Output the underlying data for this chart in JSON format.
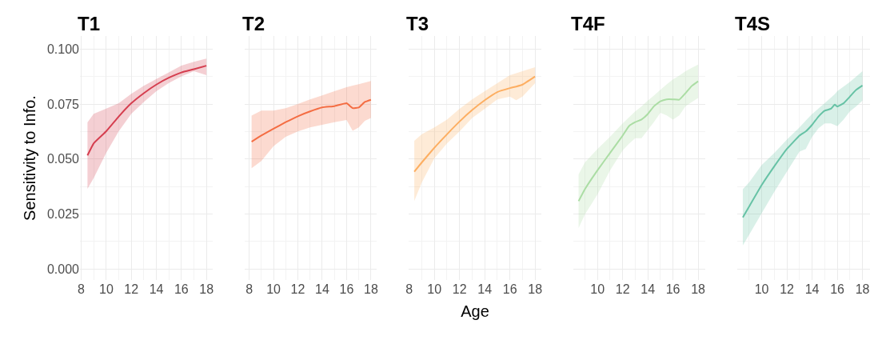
{
  "chart_data": [
    {
      "type": "line",
      "title": "T1",
      "ylabel": "Sensitivity to Info.",
      "xlim": [
        7.9,
        18.5
      ],
      "xticks": [
        8,
        10,
        12,
        14,
        16,
        18
      ],
      "ylim": [
        -0.005,
        0.106
      ],
      "yticks": [
        {
          "value": 0,
          "label": "0.000"
        },
        {
          "value": 0.025,
          "label": "0.025"
        },
        {
          "value": 0.05,
          "label": "0.050"
        },
        {
          "value": 0.075,
          "label": "0.075"
        },
        {
          "value": 0.1,
          "label": "0.100"
        }
      ],
      "grid": true,
      "series": [
        {
          "color": "#d53e4f",
          "x": [
            8.5,
            9,
            10,
            11,
            12,
            13,
            14,
            15,
            16,
            17,
            18
          ],
          "values": [
            0.0517,
            0.0572,
            0.0627,
            0.0694,
            0.0754,
            0.08,
            0.0839,
            0.087,
            0.0894,
            0.0909,
            0.0925
          ],
          "lower": [
            0.0365,
            0.0414,
            0.0529,
            0.0627,
            0.0706,
            0.076,
            0.0809,
            0.0846,
            0.0876,
            0.09,
            0.0882
          ],
          "upper": [
            0.0667,
            0.0706,
            0.073,
            0.0754,
            0.0797,
            0.0833,
            0.0864,
            0.0894,
            0.0925,
            0.0943,
            0.0957
          ]
        }
      ]
    },
    {
      "type": "line",
      "title": "T2",
      "xlim": [
        7.6,
        18.5
      ],
      "xticks": [
        8,
        10,
        12,
        14,
        16,
        18
      ],
      "ylim": [
        -0.005,
        0.106
      ],
      "yticks": [
        {
          "value": 0,
          "label": null
        },
        {
          "value": 0.025,
          "label": null
        },
        {
          "value": 0.05,
          "label": null
        },
        {
          "value": 0.075,
          "label": null
        },
        {
          "value": 0.1,
          "label": null
        }
      ],
      "tick_labels": "x",
      "grid": true,
      "series": [
        {
          "color": "#f46d43",
          "x": [
            8.2,
            9,
            10,
            11,
            12,
            13,
            14,
            15,
            16,
            16.5,
            17,
            17.5,
            18
          ],
          "values": [
            0.0579,
            0.0607,
            0.0638,
            0.0668,
            0.0695,
            0.0717,
            0.0735,
            0.0741,
            0.0754,
            0.0732,
            0.0735,
            0.076,
            0.077
          ],
          "lower": [
            0.0459,
            0.0491,
            0.0559,
            0.0601,
            0.0626,
            0.0644,
            0.0656,
            0.0668,
            0.0678,
            0.0629,
            0.0644,
            0.0674,
            0.0687
          ],
          "upper": [
            0.0698,
            0.0721,
            0.0721,
            0.0732,
            0.0751,
            0.0772,
            0.079,
            0.0809,
            0.0827,
            0.0834,
            0.0841,
            0.0848,
            0.0855
          ]
        }
      ]
    },
    {
      "type": "line",
      "title": "T3",
      "xlabel": "Age",
      "xlim": [
        7.95,
        18.5
      ],
      "xticks": [
        8,
        10,
        12,
        14,
        16,
        18
      ],
      "ylim": [
        -0.005,
        0.106
      ],
      "yticks": [
        {
          "value": 0,
          "label": null
        },
        {
          "value": 0.025,
          "label": null
        },
        {
          "value": 0.05,
          "label": null
        },
        {
          "value": 0.075,
          "label": null
        },
        {
          "value": 0.1,
          "label": null
        }
      ],
      "tick_labels": "x",
      "grid": true,
      "series": [
        {
          "color": "#fdae61",
          "x": [
            8.4,
            9,
            10,
            11,
            12,
            13,
            14,
            15,
            16,
            16.5,
            17,
            18
          ],
          "values": [
            0.0443,
            0.0485,
            0.0552,
            0.0613,
            0.0671,
            0.0723,
            0.0768,
            0.0805,
            0.0823,
            0.083,
            0.0839,
            0.0876
          ],
          "lower": [
            0.0309,
            0.0394,
            0.0504,
            0.0571,
            0.0626,
            0.0687,
            0.0729,
            0.0772,
            0.0784,
            0.0768,
            0.0784,
            0.0845
          ],
          "upper": [
            0.0583,
            0.0613,
            0.0644,
            0.068,
            0.0729,
            0.0772,
            0.0809,
            0.0845,
            0.0882,
            0.0891,
            0.09,
            0.0918
          ]
        }
      ]
    },
    {
      "type": "line",
      "title": "T4F",
      "xlim": [
        8.05,
        18.6
      ],
      "xticks": [
        10,
        12,
        14,
        16,
        18
      ],
      "ylim": [
        -0.005,
        0.106
      ],
      "yticks": [
        {
          "value": 0,
          "label": null
        },
        {
          "value": 0.025,
          "label": null
        },
        {
          "value": 0.05,
          "label": null
        },
        {
          "value": 0.075,
          "label": null
        },
        {
          "value": 0.1,
          "label": null
        }
      ],
      "tick_labels": "x",
      "grid": true,
      "series": [
        {
          "color": "#abdda4",
          "x": [
            8.5,
            9,
            10,
            11,
            12,
            12.5,
            13,
            13.5,
            14,
            14.5,
            15,
            15.5,
            16,
            16.5,
            17,
            17.5,
            18
          ],
          "values": [
            0.0309,
            0.0363,
            0.0449,
            0.0528,
            0.0607,
            0.065,
            0.0668,
            0.068,
            0.0705,
            0.0741,
            0.0763,
            0.0772,
            0.0772,
            0.077,
            0.08,
            0.0833,
            0.0854
          ],
          "lower": [
            0.0187,
            0.0248,
            0.0339,
            0.0449,
            0.054,
            0.057,
            0.0595,
            0.0595,
            0.0632,
            0.067,
            0.0711,
            0.0699,
            0.068,
            0.0699,
            0.0741,
            0.076,
            0.0778
          ],
          "upper": [
            0.043,
            0.0485,
            0.0546,
            0.0601,
            0.0662,
            0.069,
            0.0717,
            0.074,
            0.0766,
            0.079,
            0.0815,
            0.084,
            0.0863,
            0.088,
            0.09,
            0.0915,
            0.093
          ]
        }
      ]
    },
    {
      "type": "line",
      "title": "T4S",
      "xlim": [
        8.06,
        18.6
      ],
      "xticks": [
        10,
        12,
        14,
        16,
        18
      ],
      "ylim": [
        -0.005,
        0.106
      ],
      "yticks": [
        {
          "value": 0,
          "label": null
        },
        {
          "value": 0.025,
          "label": null
        },
        {
          "value": 0.05,
          "label": null
        },
        {
          "value": 0.075,
          "label": null
        },
        {
          "value": 0.1,
          "label": null
        }
      ],
      "tick_labels": "x",
      "grid": true,
      "series": [
        {
          "color": "#66c2a5",
          "x": [
            8.5,
            9,
            10,
            11,
            12,
            13,
            13.5,
            14,
            14.5,
            15,
            15.5,
            15.8,
            16,
            16.5,
            17,
            17.5,
            18
          ],
          "values": [
            0.0235,
            0.0284,
            0.0382,
            0.0467,
            0.0546,
            0.0607,
            0.0626,
            0.0656,
            0.0693,
            0.072,
            0.0729,
            0.0748,
            0.0739,
            0.0754,
            0.0784,
            0.0815,
            0.0835
          ],
          "lower": [
            0.0107,
            0.0156,
            0.0254,
            0.0351,
            0.0443,
            0.0534,
            0.0546,
            0.0601,
            0.064,
            0.0662,
            0.0662,
            0.0655,
            0.065,
            0.068,
            0.0717,
            0.074,
            0.0766
          ],
          "upper": [
            0.0363,
            0.0394,
            0.0473,
            0.0528,
            0.0589,
            0.0644,
            0.0675,
            0.0705,
            0.073,
            0.0754,
            0.078,
            0.0795,
            0.0809,
            0.083,
            0.0851,
            0.0875,
            0.09
          ]
        }
      ]
    }
  ]
}
